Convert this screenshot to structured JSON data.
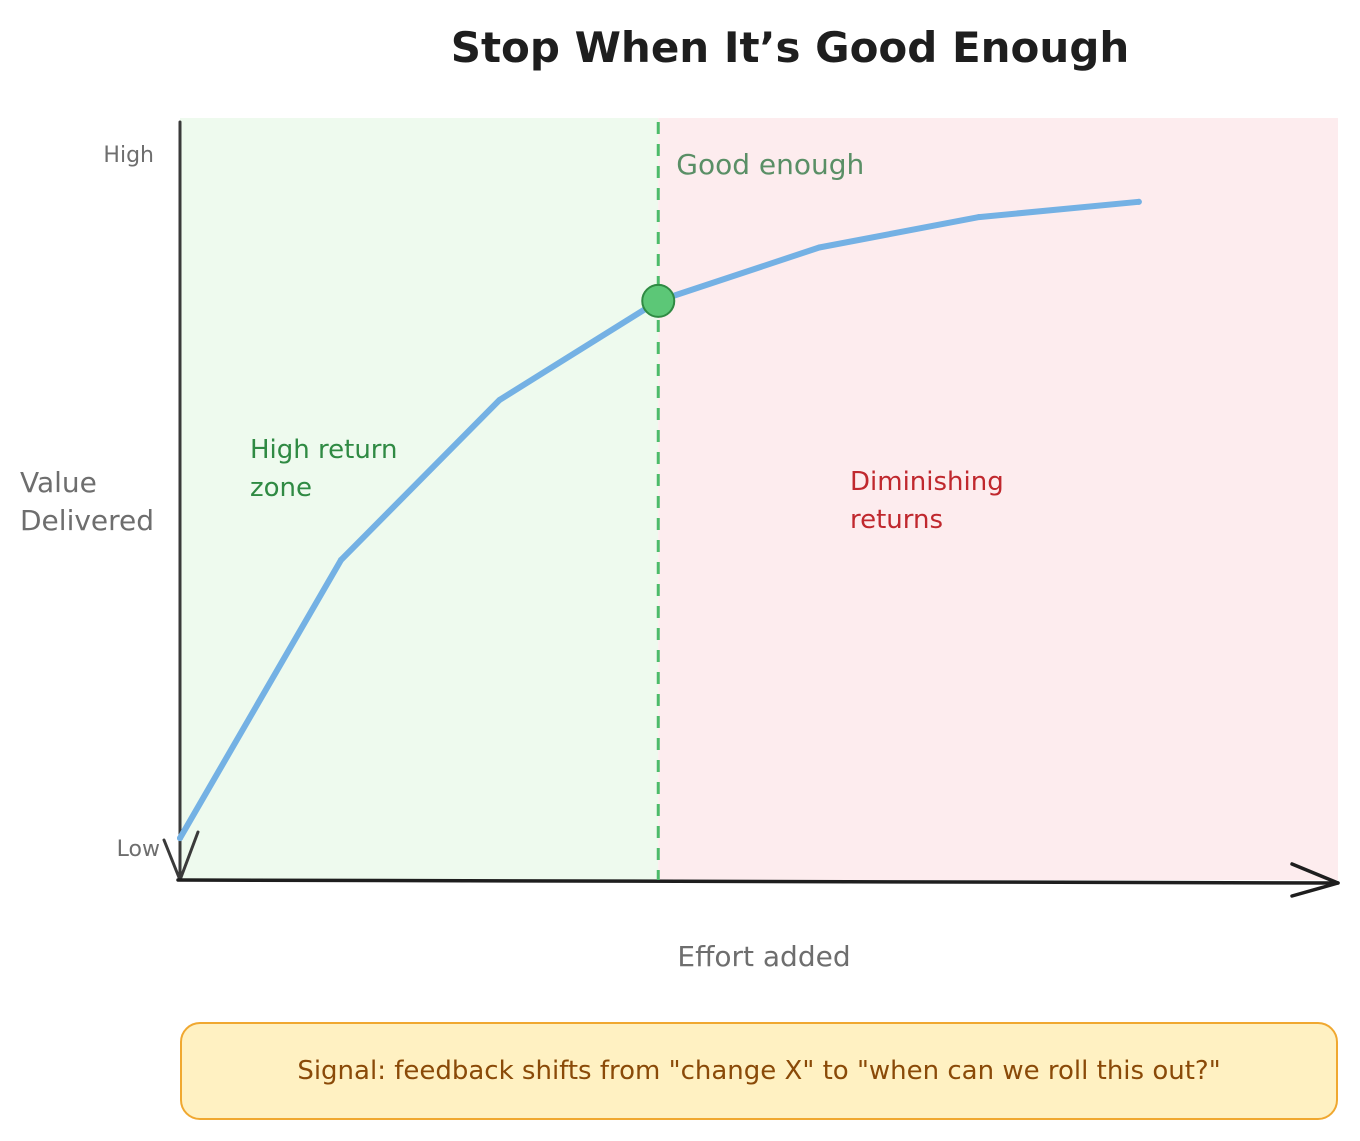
{
  "chart_data": {
    "type": "line",
    "title": "Stop When It’s Good Enough",
    "xlabel": "Effort added",
    "ylabel": "Value Delivered",
    "y_ticks": [
      "High",
      "Low"
    ],
    "x_labels_shown": false,
    "xlim": [
      0,
      1
    ],
    "ylim": [
      0,
      1
    ],
    "series": [
      {
        "color": "#74b1e4",
        "points": [
          {
            "x": 0.0,
            "y": 0.055
          },
          {
            "x": 0.139,
            "y": 0.42
          },
          {
            "x": 0.276,
            "y": 0.63
          },
          {
            "x": 0.413,
            "y": 0.76
          },
          {
            "x": 0.552,
            "y": 0.83
          },
          {
            "x": 0.69,
            "y": 0.87
          },
          {
            "x": 0.828,
            "y": 0.89
          }
        ]
      }
    ],
    "threshold": {
      "x": 0.413,
      "y": 0.76,
      "label": "Good enough",
      "line_color": "#4cbb6a",
      "marker_color": "#5cc777"
    },
    "regions": [
      {
        "label": "High return\nzone",
        "x_range": [
          0,
          0.413
        ],
        "fill": "#eefaee",
        "text_color": "#2f8a43"
      },
      {
        "label": "Diminishing\nreturns",
        "x_range": [
          0.413,
          1.0
        ],
        "fill": "#fdecee",
        "text_color": "#c0282e"
      }
    ],
    "grid": false,
    "legend": "none"
  },
  "callout": {
    "text": "Signal: feedback shifts from \"change X\" to \"when can we roll this out?\"",
    "background": "#fff1c2",
    "border": "#f0a830",
    "text_color": "#8a4a08"
  }
}
